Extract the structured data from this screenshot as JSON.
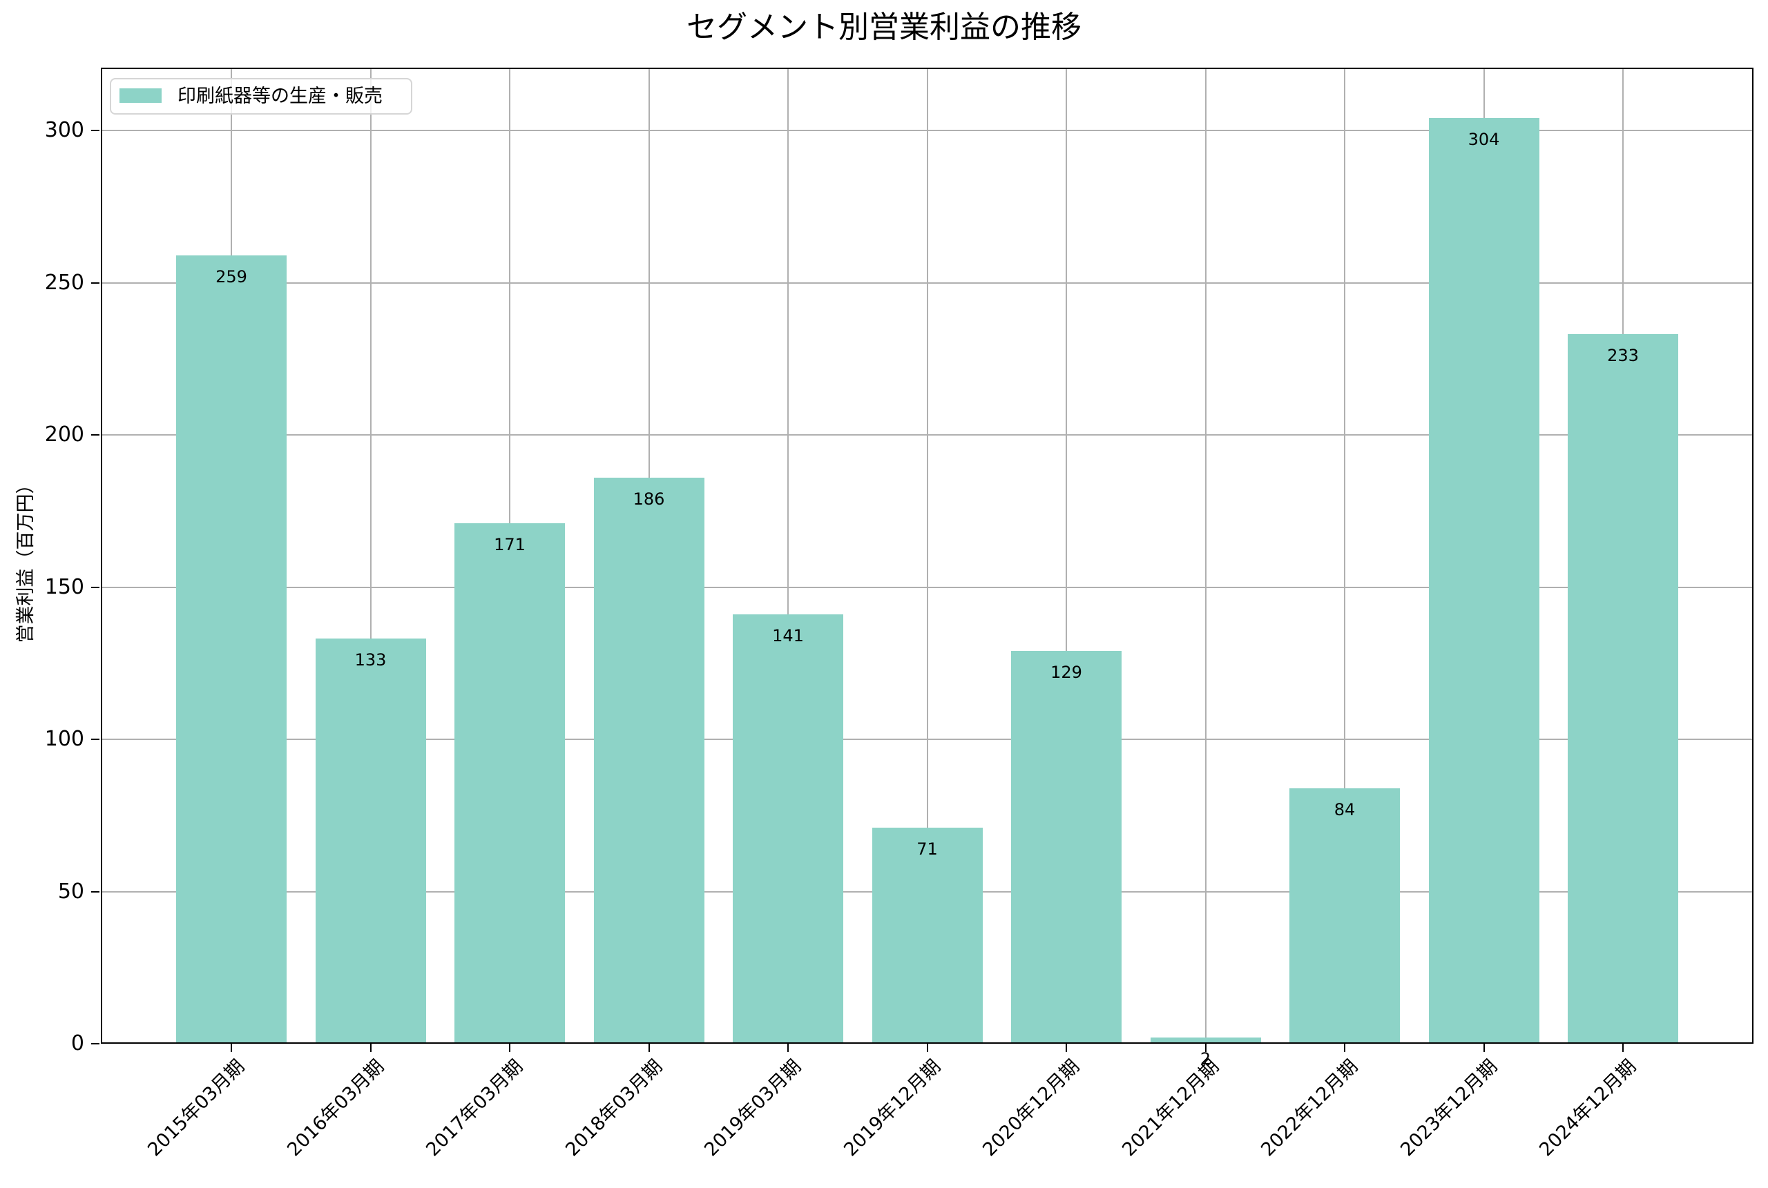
{
  "title": "セグメント別営業利益の推移",
  "ylabel": "営業利益（百万円）",
  "legend": {
    "label": "印刷紙器等の生産・販売",
    "color": "#8dd3c7"
  },
  "y_ticks": [
    "0",
    "50",
    "100",
    "150",
    "200",
    "250",
    "300"
  ],
  "bars": [
    {
      "category": "2015年03月期",
      "value": 259,
      "label": "259"
    },
    {
      "category": "2016年03月期",
      "value": 133,
      "label": "133"
    },
    {
      "category": "2017年03月期",
      "value": 171,
      "label": "171"
    },
    {
      "category": "2018年03月期",
      "value": 186,
      "label": "186"
    },
    {
      "category": "2019年03月期",
      "value": 141,
      "label": "141"
    },
    {
      "category": "2019年12月期",
      "value": 71,
      "label": "71"
    },
    {
      "category": "2020年12月期",
      "value": 129,
      "label": "129"
    },
    {
      "category": "2021年12月期",
      "value": 2,
      "label": "2"
    },
    {
      "category": "2022年12月期",
      "value": 84,
      "label": "84"
    },
    {
      "category": "2023年12月期",
      "value": 304,
      "label": "304"
    },
    {
      "category": "2024年12月期",
      "value": 233,
      "label": "233"
    }
  ],
  "chart_data": {
    "type": "bar",
    "title": "セグメント別営業利益の推移",
    "xlabel": "",
    "ylabel": "営業利益（百万円）",
    "categories": [
      "2015年03月期",
      "2016年03月期",
      "2017年03月期",
      "2018年03月期",
      "2019年03月期",
      "2019年12月期",
      "2020年12月期",
      "2021年12月期",
      "2022年12月期",
      "2023年12月期",
      "2024年12月期"
    ],
    "series": [
      {
        "name": "印刷紙器等の生産・販売",
        "values": [
          259,
          133,
          171,
          186,
          141,
          71,
          129,
          2,
          84,
          304,
          233
        ],
        "color": "#8dd3c7"
      }
    ],
    "ylim": [
      0,
      320
    ],
    "y_ticks": [
      0,
      50,
      100,
      150,
      200,
      250,
      300
    ],
    "grid": true,
    "legend_position": "upper left",
    "data_labels": true,
    "x_tick_rotation": 45
  }
}
